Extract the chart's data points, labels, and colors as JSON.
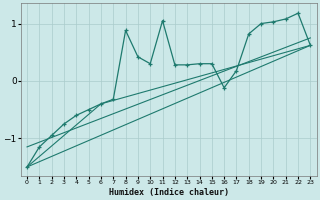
{
  "title": "",
  "xlabel": "Humidex (Indice chaleur)",
  "xlim": [
    -0.5,
    23.5
  ],
  "ylim": [
    -1.65,
    1.35
  ],
  "yticks": [
    -1,
    0,
    1
  ],
  "xticks": [
    0,
    1,
    2,
    3,
    4,
    5,
    6,
    7,
    8,
    9,
    10,
    11,
    12,
    13,
    14,
    15,
    16,
    17,
    18,
    19,
    20,
    21,
    22,
    23
  ],
  "bg_color": "#cce8e8",
  "grid_color": "#aacccc",
  "line_color": "#1e7a6e",
  "series1_x": [
    0,
    1,
    2,
    3,
    4,
    5,
    6,
    7,
    8,
    9,
    10,
    11,
    12,
    13,
    14,
    15,
    16,
    17,
    18,
    19,
    20,
    21,
    22,
    23
  ],
  "series1_y": [
    -1.5,
    -1.15,
    -0.95,
    -0.75,
    -0.6,
    -0.5,
    -0.4,
    -0.32,
    0.88,
    0.42,
    0.3,
    1.05,
    0.28,
    0.28,
    0.3,
    0.3,
    -0.12,
    0.18,
    0.82,
    1.0,
    1.03,
    1.08,
    1.18,
    0.62
  ],
  "series2_x": [
    0,
    23
  ],
  "series2_y": [
    -1.5,
    0.62
  ],
  "series3_x": [
    0,
    23
  ],
  "series3_y": [
    -1.15,
    0.75
  ],
  "series4_x": [
    0,
    6,
    23
  ],
  "series4_y": [
    -1.5,
    -0.4,
    0.62
  ]
}
